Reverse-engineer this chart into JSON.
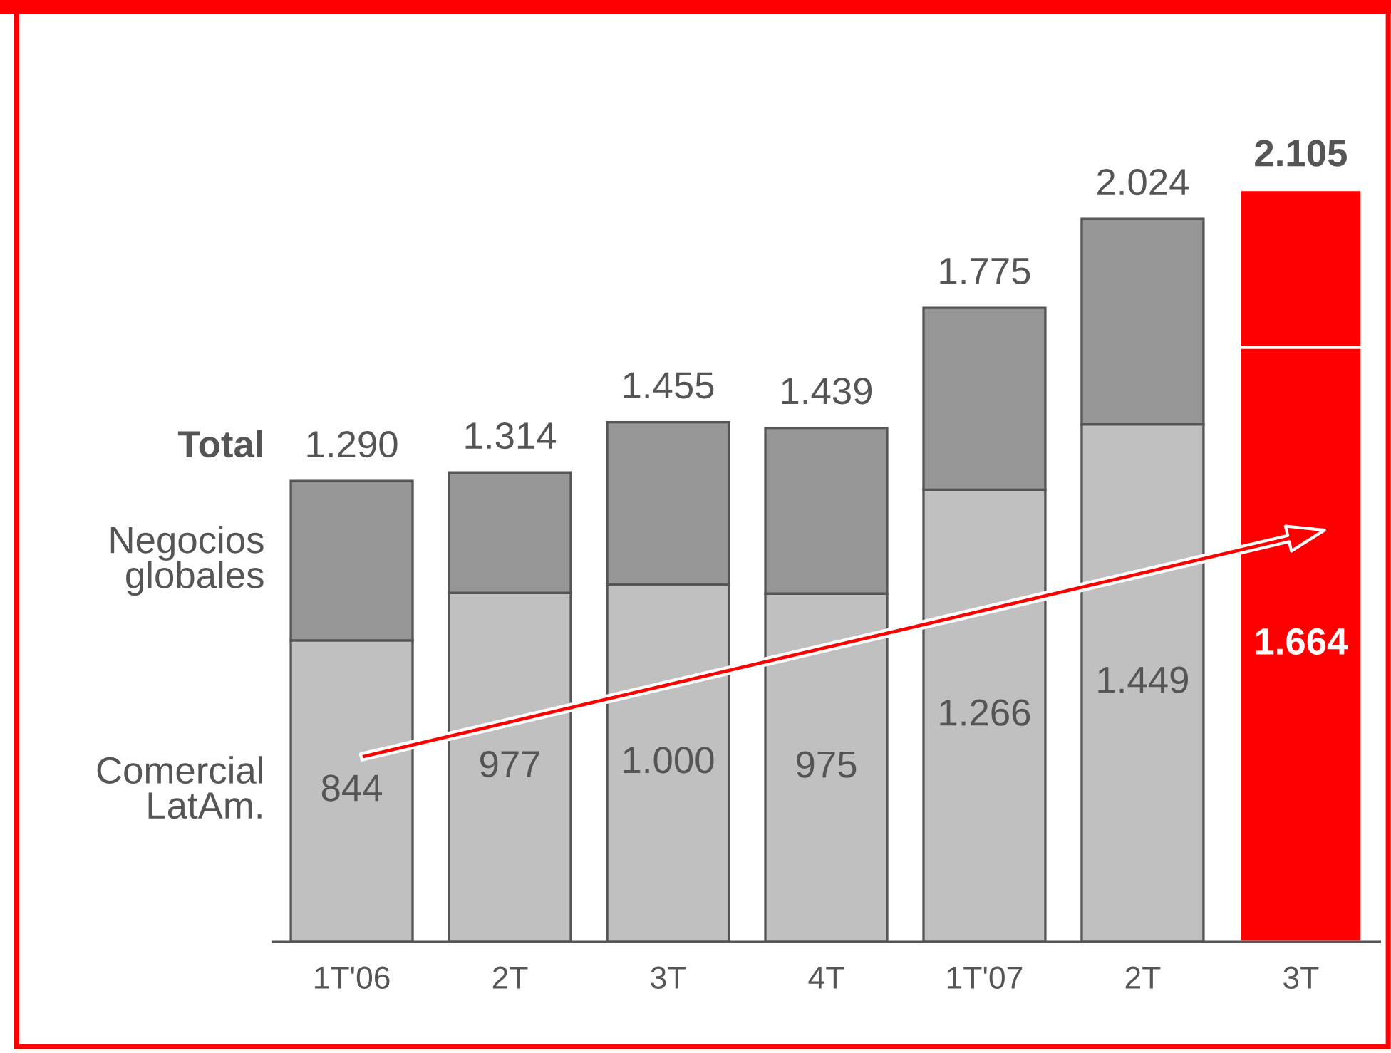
{
  "chart_data": {
    "type": "bar",
    "stacked": true,
    "categories": [
      "1T'06",
      "2T",
      "3T",
      "4T",
      "1T'07",
      "2T",
      "3T"
    ],
    "series": [
      {
        "name": "Comercial LatAm.",
        "colors": [
          "#c0c0c0",
          "#c0c0c0",
          "#c0c0c0",
          "#c0c0c0",
          "#c0c0c0",
          "#c0c0c0",
          "#ff0000"
        ],
        "values": [
          844,
          977,
          1000,
          975,
          1266,
          1449,
          1664
        ],
        "value_labels": [
          "844",
          "977",
          "1.000",
          "975",
          "1.266",
          "1.449",
          "1.664"
        ]
      },
      {
        "name": "Negocios globales",
        "colors": [
          "#969696",
          "#969696",
          "#969696",
          "#969696",
          "#969696",
          "#969696",
          "#ff0000"
        ],
        "values": [
          446,
          337,
          455,
          464,
          509,
          575,
          441
        ]
      }
    ],
    "totals": [
      "1.290",
      "1.314",
      "1.455",
      "1.439",
      "1.775",
      "2.024",
      "2.105"
    ],
    "annotations": [
      "Total"
    ],
    "grid": false,
    "legend": false
  }
}
